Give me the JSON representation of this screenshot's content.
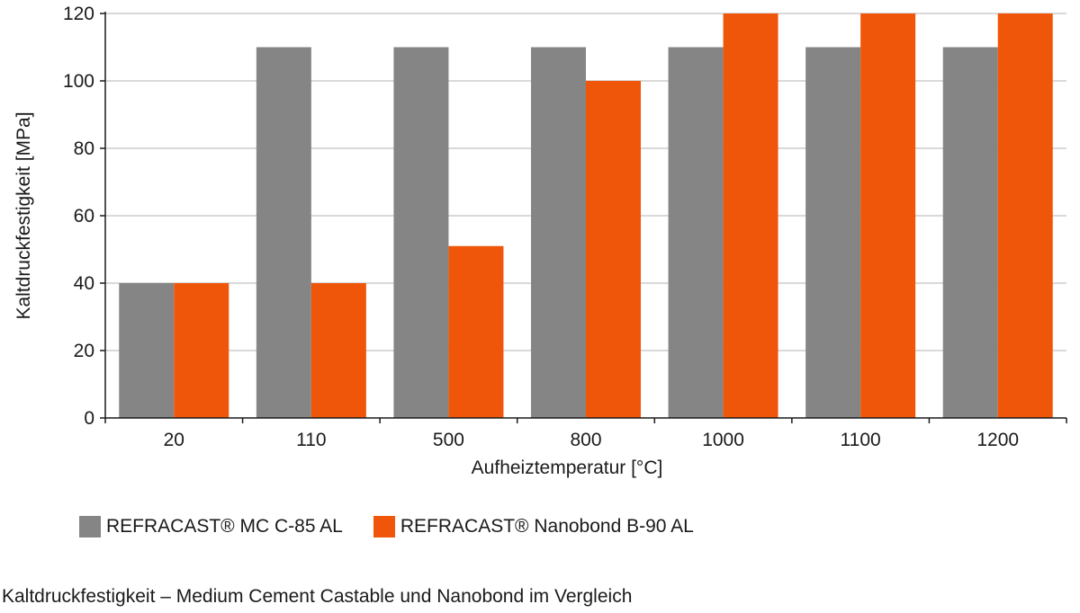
{
  "chart_data": {
    "type": "bar",
    "categories": [
      "20",
      "110",
      "500",
      "800",
      "1000",
      "1100",
      "1200"
    ],
    "series": [
      {
        "name": "REFRACAST® MC C-85 AL",
        "color": "#858585",
        "values": [
          40,
          110,
          110,
          110,
          110,
          110,
          110
        ]
      },
      {
        "name": "REFRACAST® Nanobond B-90 AL",
        "color": "#f0560a",
        "values": [
          40,
          40,
          51,
          100,
          120,
          120,
          120
        ]
      }
    ],
    "xlabel": "Aufheiztemperatur [°C]",
    "ylabel": "Kaltdruckfestigkeit [MPa]",
    "ylim": [
      0,
      120
    ],
    "yticks": [
      "0",
      "20",
      "40",
      "60",
      "80",
      "100",
      "120"
    ],
    "grid": true,
    "legend_position": "bottom-left"
  },
  "caption": "Kaltdruckfestigkeit – Medium Cement Castable und Nanobond im Vergleich"
}
